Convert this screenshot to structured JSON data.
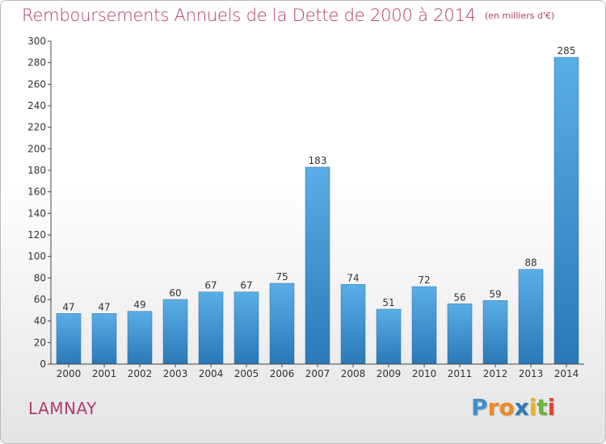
{
  "title": "Remboursements Annuels de la Dette de 2000 à 2014",
  "subtitle": "(en milliers d'€)",
  "place": "LAMNAY",
  "logo": {
    "text": "Proxiti",
    "letters": [
      "P",
      "r",
      "o",
      "x",
      "i",
      "t",
      "i"
    ],
    "colors": [
      "#3c8fce",
      "#f08a1c",
      "#f08a1c",
      "#2c7ab7",
      "#f0b21c",
      "#6cb33f",
      "#e0443a"
    ]
  },
  "colors": {
    "bar_top": "#5aaee6",
    "bar_bottom": "#2a78b8",
    "title": "#b23b6f",
    "axis": "#333333"
  },
  "chart_data": {
    "type": "bar",
    "categories": [
      "2000",
      "2001",
      "2002",
      "2003",
      "2004",
      "2005",
      "2006",
      "2007",
      "2008",
      "2009",
      "2010",
      "2011",
      "2012",
      "2013",
      "2014"
    ],
    "values": [
      47,
      47,
      49,
      60,
      67,
      67,
      75,
      183,
      74,
      51,
      72,
      56,
      59,
      88,
      285
    ],
    "ylim": [
      0,
      300
    ],
    "yticks": [
      0,
      20,
      40,
      60,
      80,
      100,
      120,
      140,
      160,
      180,
      200,
      220,
      240,
      260,
      280,
      300
    ],
    "grid": false,
    "data_labels": true
  }
}
